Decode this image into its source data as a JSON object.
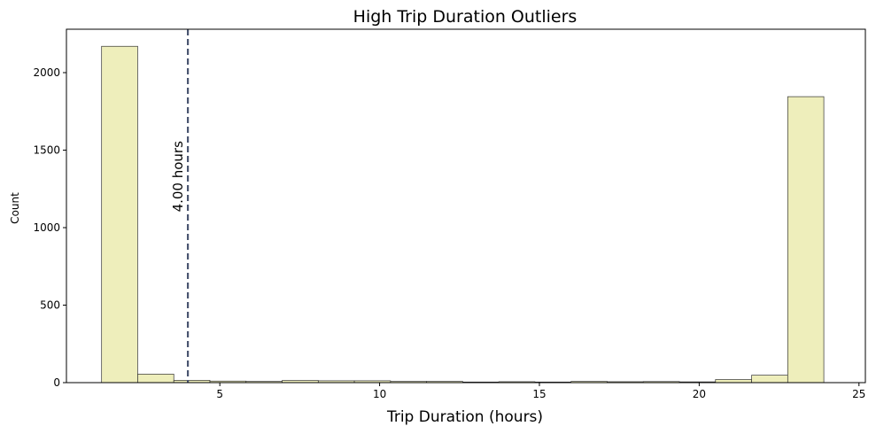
{
  "chart_data": {
    "type": "bar",
    "title": "High Trip Duration Outliers",
    "xlabel": "Trip Duration (hours)",
    "ylabel": "Count",
    "xlim": [
      0.2,
      25.2
    ],
    "ylim": [
      0,
      2280
    ],
    "x_ticks": [
      5,
      10,
      15,
      20,
      25
    ],
    "y_ticks": [
      0,
      500,
      1000,
      1500,
      2000
    ],
    "bin_edges": [
      1.3,
      2.43,
      3.56,
      4.69,
      5.82,
      6.95,
      8.08,
      9.21,
      10.34,
      11.47,
      12.6,
      13.73,
      14.86,
      15.99,
      17.12,
      18.25,
      19.38,
      20.51,
      21.64,
      22.77,
      23.9
    ],
    "values": [
      2170,
      55,
      15,
      10,
      8,
      14,
      12,
      12,
      8,
      8,
      4,
      6,
      4,
      8,
      6,
      7,
      5,
      20,
      48,
      1845
    ],
    "bar_color": "#eeeebb",
    "bar_edge_color": "#333333",
    "threshold": {
      "x": 4.0,
      "label": "4.00 hours",
      "color": "#4a5570"
    }
  }
}
